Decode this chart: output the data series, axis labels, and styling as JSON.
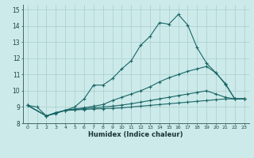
{
  "xlabel": "Humidex (Indice chaleur)",
  "bg_color": "#cceaea",
  "grid_color": "#aacccc",
  "line_color": "#1a6666",
  "xlim": [
    -0.5,
    23.5
  ],
  "ylim": [
    8,
    15.3
  ],
  "xticks": [
    0,
    1,
    2,
    3,
    4,
    5,
    6,
    7,
    8,
    9,
    10,
    11,
    12,
    13,
    14,
    15,
    16,
    17,
    18,
    19,
    20,
    21,
    22,
    23
  ],
  "yticks": [
    8,
    9,
    10,
    11,
    12,
    13,
    14,
    15
  ],
  "line1_x": [
    0,
    1,
    2,
    3,
    4,
    5,
    6,
    7,
    8,
    9,
    10,
    11,
    12,
    13,
    14,
    15,
    16,
    17,
    18,
    19,
    20,
    21,
    22,
    23
  ],
  "line1_y": [
    9.1,
    9.0,
    8.45,
    8.6,
    8.8,
    9.0,
    9.5,
    10.35,
    10.35,
    10.75,
    11.35,
    11.85,
    12.8,
    13.35,
    14.2,
    14.1,
    14.7,
    14.05,
    12.65,
    11.7,
    11.1,
    10.4,
    9.5,
    9.5
  ],
  "line2_x": [
    0,
    2,
    3,
    4,
    5,
    6,
    7,
    8,
    9,
    10,
    11,
    12,
    13,
    14,
    15,
    16,
    17,
    18,
    19,
    20,
    21,
    22,
    23
  ],
  "line2_y": [
    9.1,
    8.45,
    8.65,
    8.8,
    8.88,
    8.95,
    9.05,
    9.15,
    9.4,
    9.6,
    9.8,
    10.0,
    10.25,
    10.55,
    10.8,
    11.0,
    11.2,
    11.35,
    11.5,
    11.1,
    10.45,
    9.5,
    9.5
  ],
  "line3_x": [
    0,
    2,
    3,
    4,
    5,
    6,
    7,
    8,
    9,
    10,
    11,
    12,
    13,
    14,
    15,
    16,
    17,
    18,
    19,
    20,
    21,
    22,
    23
  ],
  "line3_y": [
    9.1,
    8.45,
    8.65,
    8.78,
    8.85,
    8.9,
    8.95,
    9.0,
    9.05,
    9.12,
    9.2,
    9.3,
    9.4,
    9.5,
    9.6,
    9.7,
    9.8,
    9.9,
    10.0,
    9.8,
    9.6,
    9.5,
    9.5
  ],
  "line4_x": [
    0,
    2,
    3,
    4,
    5,
    6,
    7,
    8,
    9,
    10,
    11,
    12,
    13,
    14,
    15,
    16,
    17,
    18,
    19,
    20,
    21,
    22,
    23
  ],
  "line4_y": [
    9.1,
    8.45,
    8.65,
    8.78,
    8.82,
    8.85,
    8.88,
    8.9,
    8.92,
    8.95,
    9.0,
    9.05,
    9.1,
    9.15,
    9.2,
    9.25,
    9.3,
    9.35,
    9.4,
    9.45,
    9.5,
    9.5,
    9.5
  ]
}
